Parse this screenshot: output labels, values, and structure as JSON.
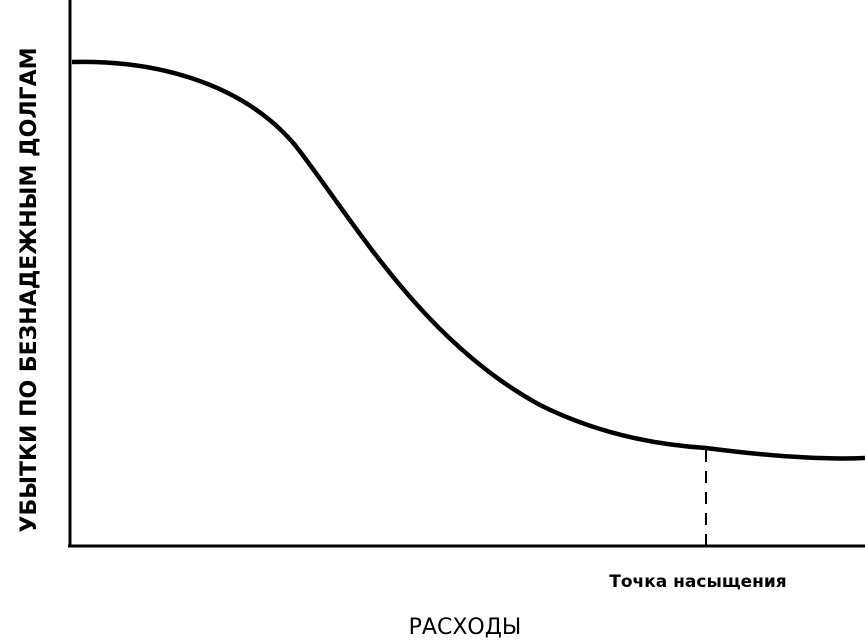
{
  "y_axis_label": "УБЫТКИ ПО БЕЗНАДЕЖНЫМ ДОЛГАМ",
  "annotation": "Точка насыщения",
  "x_axis_label": "РАСХОДЫ"
}
